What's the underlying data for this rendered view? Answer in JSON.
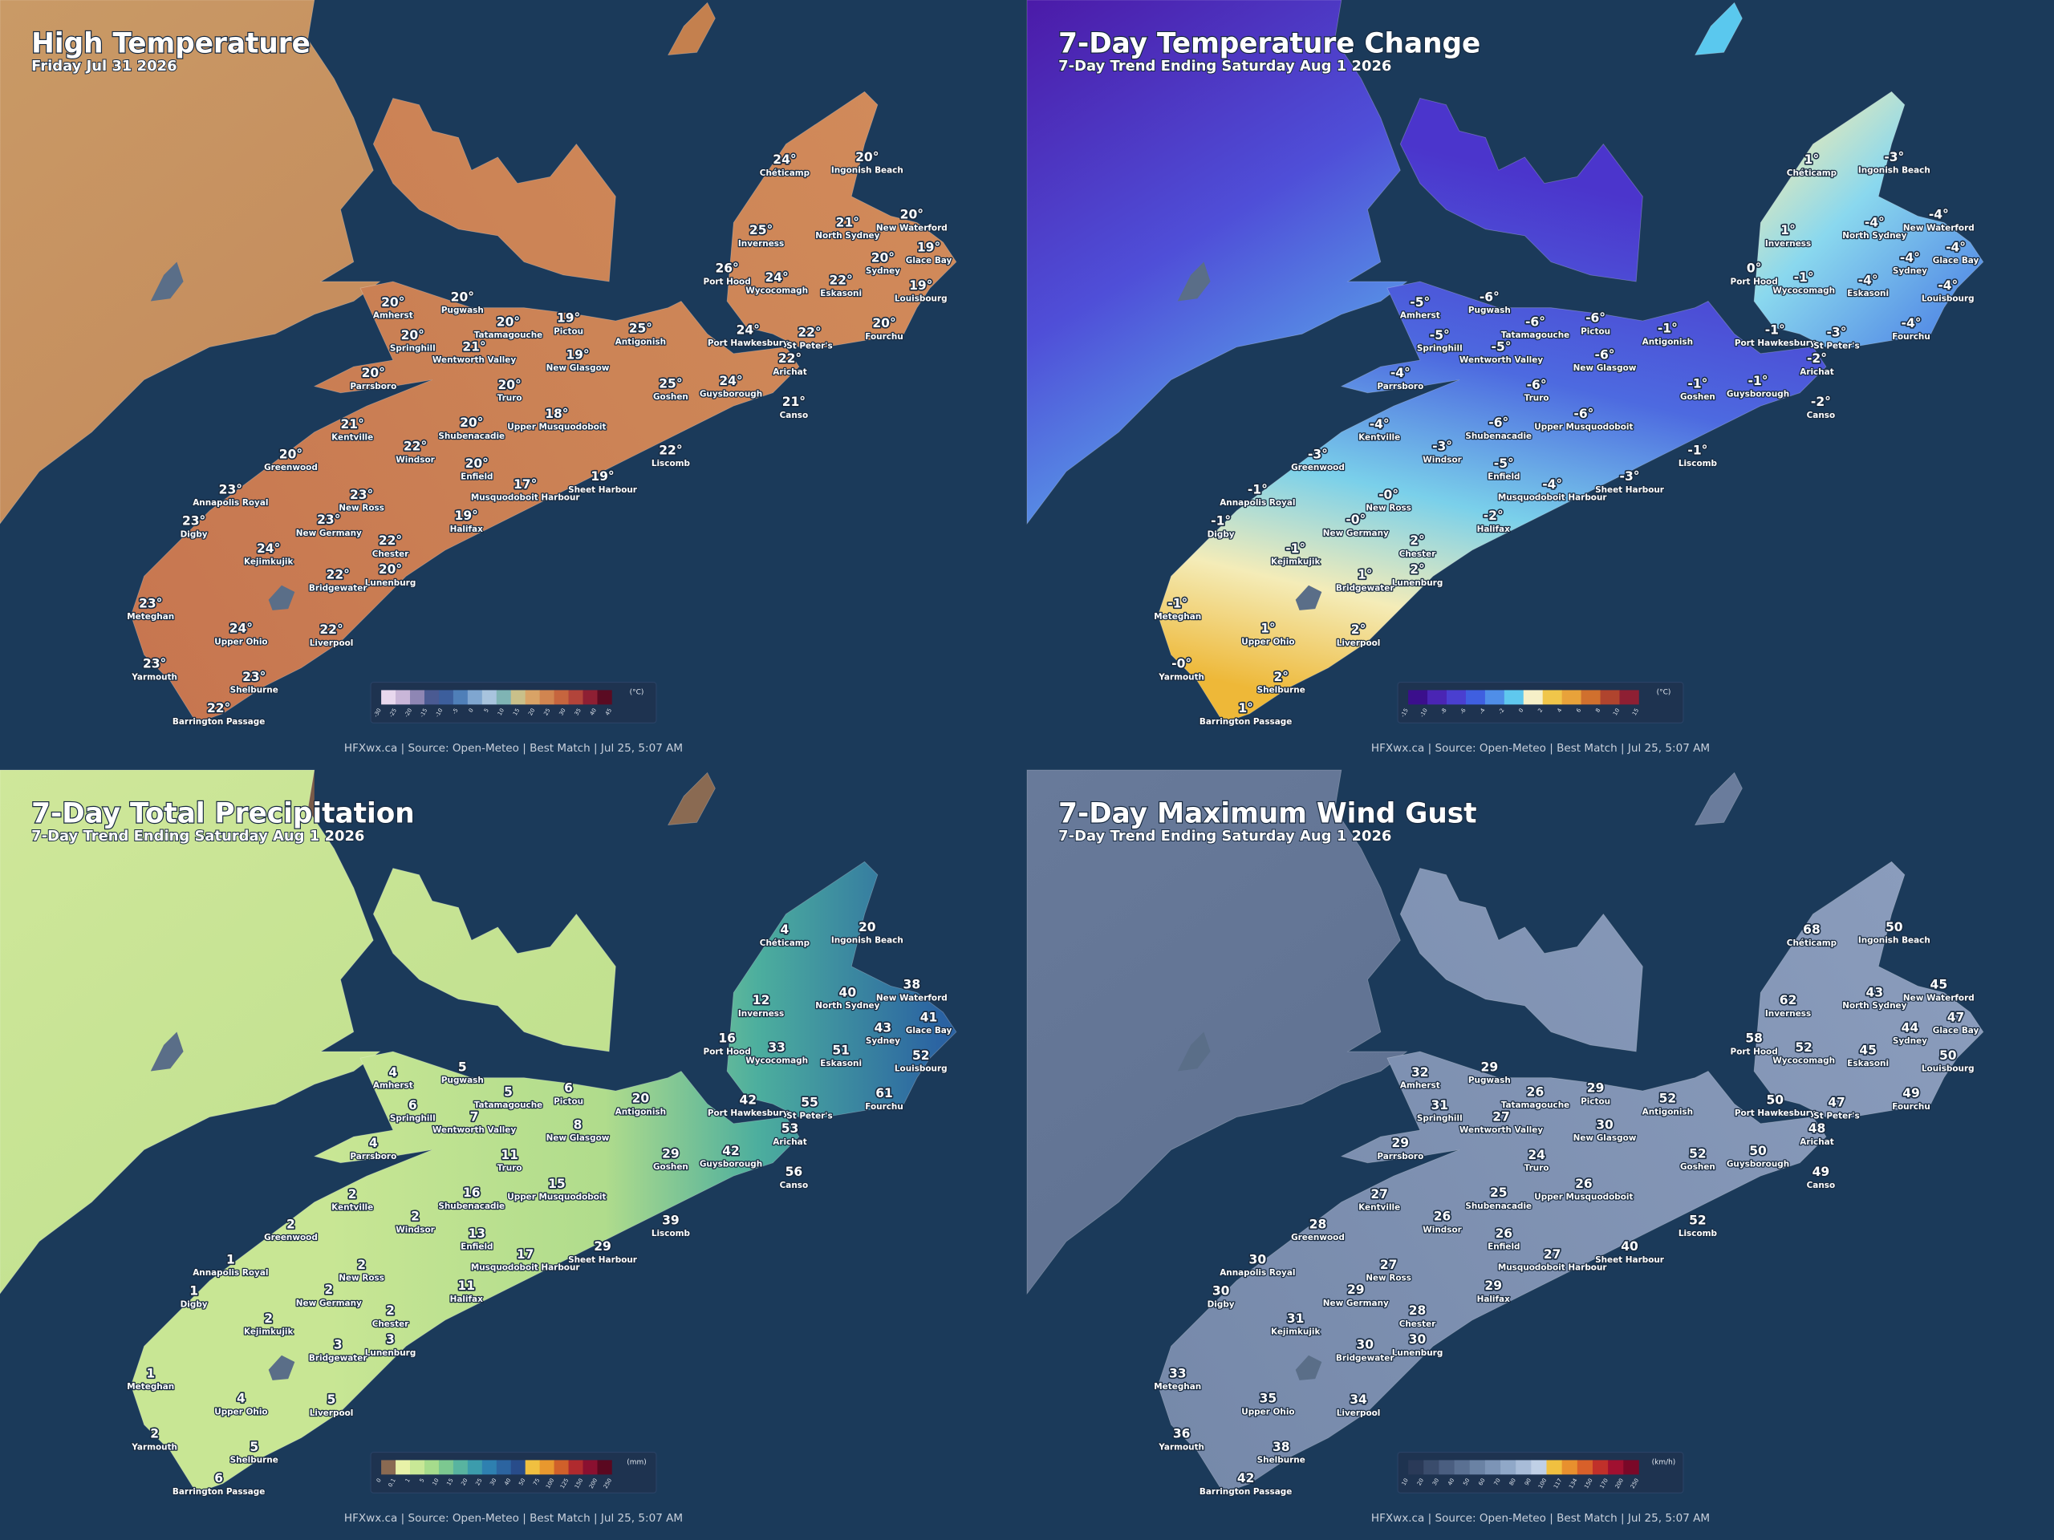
{
  "places": [
    "Chéticamp",
    "Ingonish Beach",
    "Inverness",
    "North Sydney",
    "New Waterford",
    "Glace Bay",
    "Sydney",
    "Port Hood",
    "Wycocomagh",
    "Eskasoni",
    "Louisbourg",
    "Amherst",
    "Pugwash",
    "Pictou",
    "Antigonish",
    "Tatamagouche",
    "Springhill",
    "Wentworth Valley",
    "New Glasgow",
    "Port Hawkesbury",
    "St Peter's",
    "Fourchu",
    "Arichat",
    "Parrsboro",
    "Truro",
    "Goshen",
    "Guysborough",
    "Canso",
    "Kentville",
    "Shubenacadie",
    "Upper Musquodoboit",
    "Windsor",
    "Liscomb",
    "Greenwood",
    "Enfield",
    "Musquodoboit Harbour",
    "Sheet Harbour",
    "Annapolis Royal",
    "New Ross",
    "Halifax",
    "Digby",
    "New Germany",
    "Chester",
    "Kejimkujik",
    "Lunenburg",
    "Bridgewater",
    "Meteghan",
    "Upper Ohio",
    "Liverpool",
    "Yarmouth",
    "Shelburne",
    "Barrington Passage"
  ],
  "panels": [
    {
      "title": "High Temperature",
      "subtitle": "Friday Jul 31 2026",
      "values": [
        "24°",
        "20°",
        "25°",
        "21°",
        "20°",
        "19°",
        "20°",
        "26°",
        "24°",
        "22°",
        "19°",
        "20°",
        "20°",
        "19°",
        "25°",
        "20°",
        "20°",
        "21°",
        "19°",
        "24°",
        "22°",
        "20°",
        "22°",
        "20°",
        "20°",
        "25°",
        "24°",
        "21°",
        "21°",
        "20°",
        "18°",
        "22°",
        "22°",
        "20°",
        "20°",
        "17°",
        "19°",
        "23°",
        "23°",
        "19°",
        "23°",
        "23°",
        "22°",
        "24°",
        "20°",
        "22°",
        "23°",
        "24°",
        "22°",
        "23°",
        "23°",
        "22°"
      ],
      "legend": {
        "unit": "(°C)",
        "ticks": [
          "-30",
          "-25",
          "-20",
          "-15",
          "-10",
          "-5",
          "0",
          "5",
          "10",
          "15",
          "20",
          "25",
          "30",
          "35",
          "40",
          "45"
        ],
        "colors": [
          "#e8d8ee",
          "#c9b6d8",
          "#8e86b4",
          "#4a5a92",
          "#3c5e9c",
          "#4f7fb8",
          "#7fa6d0",
          "#a8c4de",
          "#7fb4b4",
          "#c9c08a",
          "#d9a366",
          "#d18550",
          "#c6653e",
          "#b2443a",
          "#8e1f33",
          "#5a0b22"
        ]
      },
      "footer": "HFXwx.ca | Source: Open-Meteo | Best Match | Jul 25, 5:07 AM"
    },
    {
      "title": "7-Day Temperature Change",
      "subtitle": "7-Day Trend Ending Saturday Aug 1 2026",
      "values": [
        "1°",
        "-3°",
        "1°",
        "-4°",
        "-4°",
        "-4°",
        "-4°",
        "0°",
        "-1°",
        "-4°",
        "-4°",
        "-5°",
        "-6°",
        "-6°",
        "-1°",
        "-6°",
        "-5°",
        "-5°",
        "-6°",
        "-1°",
        "-3°",
        "-4°",
        "-2°",
        "-4°",
        "-6°",
        "-1°",
        "-1°",
        "-2°",
        "-4°",
        "-6°",
        "-6°",
        "-3°",
        "-1°",
        "-3°",
        "-5°",
        "-4°",
        "-3°",
        "-1°",
        "-0°",
        "-2°",
        "-1°",
        "-0°",
        "2°",
        "-1°",
        "2°",
        "1°",
        "-1°",
        "1°",
        "2°",
        "-0°",
        "2°",
        "1°"
      ],
      "legend": {
        "unit": "(°C)",
        "ticks": [
          "-15",
          "-10",
          "-8",
          "-6",
          "-4",
          "-2",
          "0",
          "2",
          "4",
          "6",
          "8",
          "10",
          "15"
        ],
        "colors": [
          "#3b0f8c",
          "#4a25b4",
          "#4a3fd0",
          "#3f5fe0",
          "#4f8ee8",
          "#5fc8ee",
          "#f6f0c8",
          "#f0c64a",
          "#e8a23a",
          "#d0702e",
          "#b0442e",
          "#8e1f33"
        ]
      },
      "footer": "HFXwx.ca | Source: Open-Meteo | Best Match | Jul 25, 5:07 AM"
    },
    {
      "title": "7-Day Total Precipitation",
      "subtitle": "7-Day Trend Ending Saturday Aug 1 2026",
      "values": [
        "4",
        "20",
        "12",
        "40",
        "38",
        "41",
        "43",
        "16",
        "33",
        "51",
        "52",
        "4",
        "5",
        "6",
        "20",
        "5",
        "6",
        "7",
        "8",
        "42",
        "55",
        "61",
        "53",
        "4",
        "11",
        "29",
        "42",
        "56",
        "2",
        "16",
        "15",
        "2",
        "39",
        "2",
        "13",
        "17",
        "29",
        "1",
        "2",
        "11",
        "1",
        "2",
        "2",
        "2",
        "3",
        "3",
        "1",
        "4",
        "5",
        "2",
        "5",
        "6"
      ],
      "legend": {
        "unit": "(mm)",
        "ticks": [
          "0",
          "0.1",
          "1",
          "5",
          "10",
          "15",
          "20",
          "25",
          "30",
          "40",
          "50",
          "75",
          "100",
          "125",
          "150",
          "200",
          "250"
        ],
        "colors": [
          "#8a6a52",
          "#e8f2a8",
          "#c8e896",
          "#a6dc8c",
          "#7cc890",
          "#58b4a0",
          "#3c9cac",
          "#2e80b0",
          "#2c64a0",
          "#284c8a",
          "#f0c040",
          "#e8982e",
          "#d0602a",
          "#b02a2e",
          "#8a1030",
          "#5a0820"
        ]
      },
      "footer": "HFXwx.ca | Source: Open-Meteo | Best Match | Jul 25, 5:07 AM"
    },
    {
      "title": "7-Day Maximum Wind Gust",
      "subtitle": "7-Day Trend Ending Saturday Aug 1 2026",
      "values": [
        "68",
        "50",
        "62",
        "43",
        "45",
        "47",
        "44",
        "58",
        "52",
        "45",
        "50",
        "32",
        "29",
        "29",
        "52",
        "26",
        "31",
        "27",
        "30",
        "50",
        "47",
        "49",
        "48",
        "29",
        "24",
        "52",
        "50",
        "49",
        "27",
        "25",
        "26",
        "26",
        "52",
        "28",
        "26",
        "27",
        "40",
        "30",
        "27",
        "29",
        "30",
        "29",
        "28",
        "31",
        "30",
        "30",
        "33",
        "35",
        "34",
        "36",
        "38",
        "42"
      ],
      "legend": {
        "unit": "(km/h)",
        "ticks": [
          "10",
          "20",
          "30",
          "40",
          "50",
          "60",
          "70",
          "80",
          "90",
          "100",
          "117",
          "134",
          "150",
          "170",
          "200",
          "250"
        ],
        "colors": [
          "#2a3a58",
          "#3a4c6c",
          "#4a5e80",
          "#5a7092",
          "#6a82a4",
          "#7c94b6",
          "#90a8c8",
          "#a8bcd8",
          "#c0d0e6",
          "#f0c040",
          "#e8902e",
          "#d8602a",
          "#c0302a",
          "#a01030",
          "#7a0828"
        ]
      },
      "footer": "HFXwx.ca | Source: Open-Meteo | Best Match | Jul 25, 5:07 AM"
    }
  ]
}
